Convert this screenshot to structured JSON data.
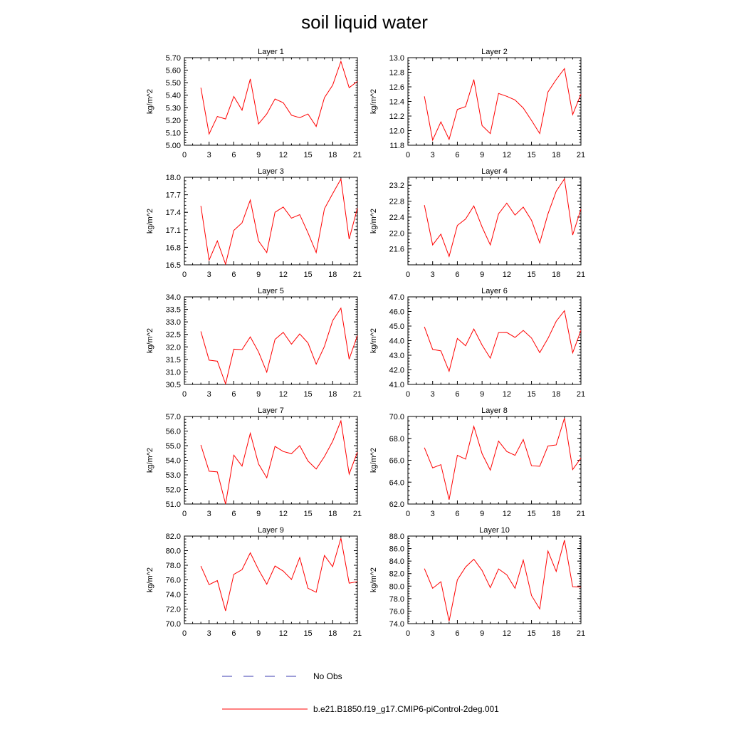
{
  "title": "soil liquid water",
  "legend": {
    "placement": "bottom",
    "entries": [
      {
        "label": "No Obs",
        "color": "#3b3bb0",
        "style": "dashed"
      },
      {
        "label": "b.e21.B1850.f19_g17.CMIP6-piControl-2deg.001",
        "color": "#ff0000",
        "style": "solid"
      }
    ]
  },
  "chart_data": [
    {
      "type": "line",
      "title": "Layer 1",
      "ylabel": "kg/m^2",
      "xlim": [
        0,
        21
      ],
      "ylim": [
        5.0,
        5.7
      ],
      "xticks": [
        "0",
        "3",
        "6",
        "9",
        "12",
        "15",
        "18",
        "21"
      ],
      "yticks": [
        "5.00",
        "5.10",
        "5.20",
        "5.30",
        "5.40",
        "5.50",
        "5.60",
        "5.70"
      ],
      "x": [
        2,
        3,
        4,
        5,
        6,
        7,
        8,
        9,
        10,
        11,
        12,
        13,
        14,
        15,
        16,
        17,
        18,
        19,
        20,
        21
      ],
      "series": [
        {
          "values": [
            5.46,
            5.09,
            5.23,
            5.21,
            5.39,
            5.28,
            5.53,
            5.17,
            5.25,
            5.37,
            5.34,
            5.24,
            5.22,
            5.25,
            5.15,
            5.38,
            5.48,
            5.67,
            5.46,
            5.51
          ]
        }
      ]
    },
    {
      "type": "line",
      "title": "Layer 2",
      "ylabel": "kg/m^2",
      "xlim": [
        0,
        21
      ],
      "ylim": [
        11.8,
        13.0
      ],
      "xticks": [
        "0",
        "3",
        "6",
        "9",
        "12",
        "15",
        "18",
        "21"
      ],
      "yticks": [
        "11.8",
        "12.0",
        "12.2",
        "12.4",
        "12.6",
        "12.8",
        "13.0"
      ],
      "x": [
        2,
        3,
        4,
        5,
        6,
        7,
        8,
        9,
        10,
        11,
        12,
        13,
        14,
        15,
        16,
        17,
        18,
        19,
        20,
        21
      ],
      "series": [
        {
          "values": [
            12.47,
            11.87,
            12.12,
            11.88,
            12.29,
            12.33,
            12.7,
            12.07,
            11.96,
            12.51,
            12.47,
            12.42,
            12.31,
            12.14,
            11.96,
            12.53,
            12.7,
            12.85,
            12.22,
            12.5
          ]
        }
      ]
    },
    {
      "type": "line",
      "title": "Layer 3",
      "ylabel": "kg/m^2",
      "xlim": [
        0,
        21
      ],
      "ylim": [
        16.5,
        18.0
      ],
      "xticks": [
        "0",
        "3",
        "6",
        "9",
        "12",
        "15",
        "18",
        "21"
      ],
      "yticks": [
        "16.5",
        "16.8",
        "17.1",
        "17.4",
        "17.7",
        "18.0"
      ],
      "x": [
        2,
        3,
        4,
        5,
        6,
        7,
        8,
        9,
        10,
        11,
        12,
        13,
        14,
        15,
        16,
        17,
        18,
        19,
        20,
        21
      ],
      "series": [
        {
          "values": [
            17.51,
            16.58,
            16.91,
            16.51,
            17.09,
            17.22,
            17.61,
            16.91,
            16.71,
            17.4,
            17.49,
            17.3,
            17.36,
            17.05,
            16.71,
            17.46,
            17.72,
            17.97,
            16.94,
            17.47
          ]
        }
      ]
    },
    {
      "type": "line",
      "title": "Layer 4",
      "ylabel": "kg/m^2",
      "xlim": [
        0,
        21
      ],
      "ylim": [
        21.2,
        23.4
      ],
      "xticks": [
        "0",
        "3",
        "6",
        "9",
        "12",
        "15",
        "18",
        "21"
      ],
      "yticks": [
        "21.6",
        "22.0",
        "22.4",
        "22.8",
        "23.2"
      ],
      "x": [
        2,
        3,
        4,
        5,
        6,
        7,
        8,
        9,
        10,
        11,
        12,
        13,
        14,
        15,
        16,
        17,
        18,
        19,
        20,
        21
      ],
      "series": [
        {
          "values": [
            22.7,
            21.7,
            21.97,
            21.41,
            22.19,
            22.35,
            22.68,
            22.15,
            21.7,
            22.48,
            22.75,
            22.45,
            22.65,
            22.32,
            21.75,
            22.48,
            23.05,
            23.36,
            21.95,
            22.6
          ]
        }
      ]
    },
    {
      "type": "line",
      "title": "Layer 5",
      "ylabel": "kg/m^2",
      "xlim": [
        0,
        21
      ],
      "ylim": [
        30.5,
        34.0
      ],
      "xticks": [
        "0",
        "3",
        "6",
        "9",
        "12",
        "15",
        "18",
        "21"
      ],
      "yticks": [
        "30.5",
        "31.0",
        "31.5",
        "32.0",
        "32.5",
        "33.0",
        "33.5",
        "34.0"
      ],
      "x": [
        2,
        3,
        4,
        5,
        6,
        7,
        8,
        9,
        10,
        11,
        12,
        13,
        14,
        15,
        16,
        17,
        18,
        19,
        20,
        21
      ],
      "series": [
        {
          "values": [
            32.62,
            31.47,
            31.43,
            30.52,
            31.91,
            31.89,
            32.4,
            31.8,
            30.99,
            32.3,
            32.58,
            32.11,
            32.52,
            32.16,
            31.31,
            32.02,
            33.05,
            33.55,
            31.51,
            32.45
          ]
        }
      ]
    },
    {
      "type": "line",
      "title": "Layer 6",
      "ylabel": "kg/m^2",
      "xlim": [
        0,
        21
      ],
      "ylim": [
        41.0,
        47.0
      ],
      "xticks": [
        "0",
        "3",
        "6",
        "9",
        "12",
        "15",
        "18",
        "21"
      ],
      "yticks": [
        "41.0",
        "42.0",
        "43.0",
        "44.0",
        "45.0",
        "46.0",
        "47.0"
      ],
      "x": [
        2,
        3,
        4,
        5,
        6,
        7,
        8,
        9,
        10,
        11,
        12,
        13,
        14,
        15,
        16,
        17,
        18,
        19,
        20,
        21
      ],
      "series": [
        {
          "values": [
            44.95,
            43.4,
            43.3,
            41.9,
            44.15,
            43.65,
            44.8,
            43.7,
            42.8,
            44.55,
            44.56,
            44.22,
            44.7,
            44.18,
            43.18,
            44.15,
            45.33,
            46.05,
            43.17,
            44.7
          ]
        }
      ]
    },
    {
      "type": "line",
      "title": "Layer 7",
      "ylabel": "kg/m^2",
      "xlim": [
        0,
        21
      ],
      "ylim": [
        51.0,
        57.0
      ],
      "xticks": [
        "0",
        "3",
        "6",
        "9",
        "12",
        "15",
        "18",
        "21"
      ],
      "yticks": [
        "51.0",
        "52.0",
        "53.0",
        "54.0",
        "55.0",
        "56.0",
        "57.0"
      ],
      "x": [
        2,
        3,
        4,
        5,
        6,
        7,
        8,
        9,
        10,
        11,
        12,
        13,
        14,
        15,
        16,
        17,
        18,
        19,
        20,
        21
      ],
      "series": [
        {
          "values": [
            55.05,
            53.25,
            53.2,
            51.0,
            54.35,
            53.6,
            55.85,
            53.75,
            52.8,
            54.95,
            54.6,
            54.45,
            55.0,
            53.95,
            53.4,
            54.25,
            55.3,
            56.7,
            53.05,
            54.55
          ]
        }
      ]
    },
    {
      "type": "line",
      "title": "Layer 8",
      "ylabel": "kg/m^2",
      "xlim": [
        0,
        21
      ],
      "ylim": [
        62.0,
        70.0
      ],
      "xticks": [
        "0",
        "3",
        "6",
        "9",
        "12",
        "15",
        "18",
        "21"
      ],
      "yticks": [
        "62.0",
        "64.0",
        "66.0",
        "68.0",
        "70.0"
      ],
      "x": [
        2,
        3,
        4,
        5,
        6,
        7,
        8,
        9,
        10,
        11,
        12,
        13,
        14,
        15,
        16,
        17,
        18,
        19,
        20,
        21
      ],
      "series": [
        {
          "values": [
            67.15,
            65.3,
            65.6,
            62.4,
            66.45,
            66.1,
            69.1,
            66.6,
            65.1,
            67.75,
            66.8,
            66.45,
            67.9,
            65.5,
            65.45,
            67.3,
            67.4,
            69.85,
            65.15,
            66.2
          ]
        }
      ]
    },
    {
      "type": "line",
      "title": "Layer 9",
      "ylabel": "kg/m^2",
      "xlim": [
        0,
        21
      ],
      "ylim": [
        70.0,
        82.0
      ],
      "xticks": [
        "0",
        "3",
        "6",
        "9",
        "12",
        "15",
        "18",
        "21"
      ],
      "yticks": [
        "70.0",
        "72.0",
        "74.0",
        "76.0",
        "78.0",
        "80.0",
        "82.0"
      ],
      "x": [
        2,
        3,
        4,
        5,
        6,
        7,
        8,
        9,
        10,
        11,
        12,
        13,
        14,
        15,
        16,
        17,
        18,
        19,
        20,
        21
      ],
      "series": [
        {
          "values": [
            77.9,
            75.35,
            75.9,
            71.75,
            76.75,
            77.4,
            79.7,
            77.4,
            75.4,
            77.9,
            77.2,
            76.05,
            79.05,
            74.85,
            74.3,
            79.35,
            77.8,
            81.7,
            75.55,
            75.75
          ]
        }
      ]
    },
    {
      "type": "line",
      "title": "Layer 10",
      "ylabel": "kg/m^2",
      "xlim": [
        0,
        21
      ],
      "ylim": [
        74.0,
        88.0
      ],
      "xticks": [
        "0",
        "3",
        "6",
        "9",
        "12",
        "15",
        "18",
        "21"
      ],
      "yticks": [
        "74.0",
        "76.0",
        "78.0",
        "80.0",
        "82.0",
        "84.0",
        "86.0",
        "88.0"
      ],
      "x": [
        2,
        3,
        4,
        5,
        6,
        7,
        8,
        9,
        10,
        11,
        12,
        13,
        14,
        15,
        16,
        17,
        18,
        19,
        20,
        21
      ],
      "series": [
        {
          "values": [
            82.8,
            79.65,
            80.7,
            74.4,
            81.0,
            83.05,
            84.3,
            82.5,
            79.75,
            82.75,
            81.8,
            79.65,
            84.15,
            78.5,
            76.35,
            85.6,
            82.35,
            87.35,
            79.9,
            79.85
          ]
        }
      ]
    }
  ]
}
